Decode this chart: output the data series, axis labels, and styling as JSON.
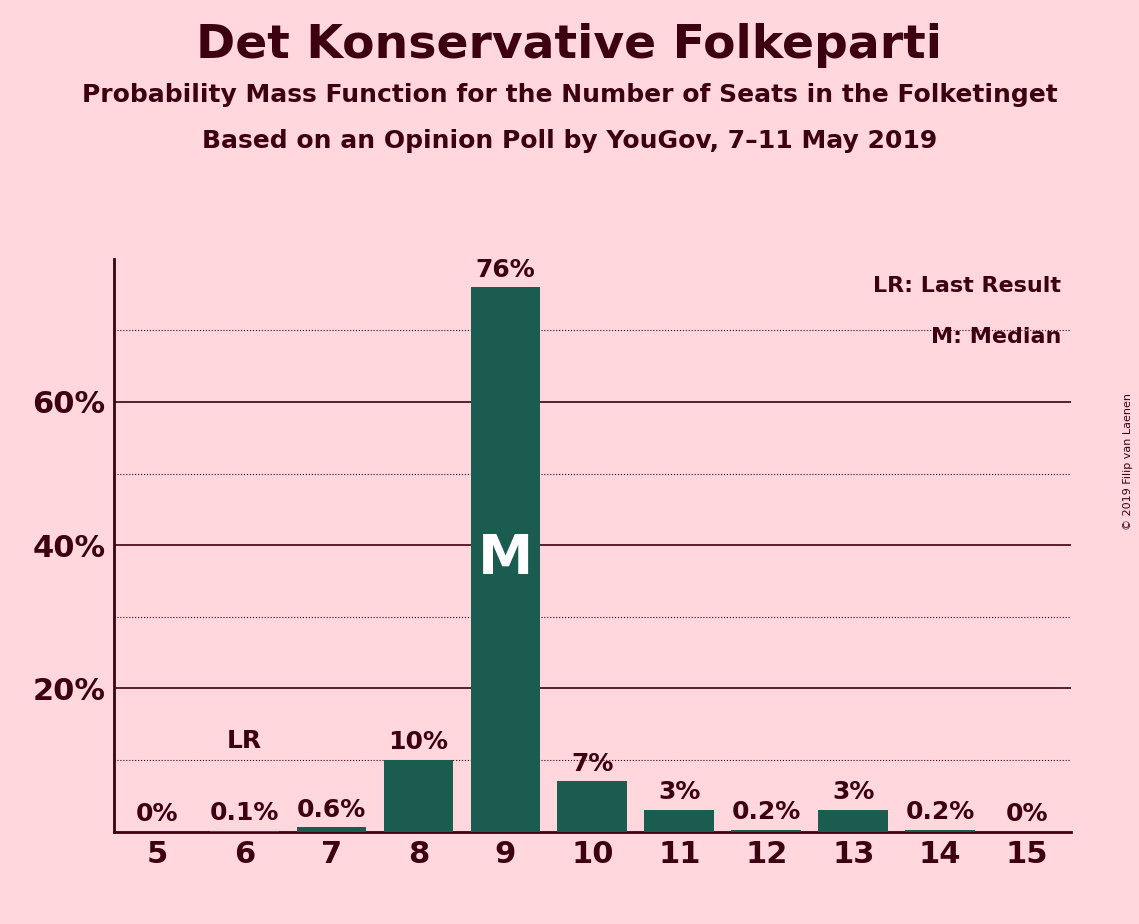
{
  "title": "Det Konservative Folkeparti",
  "subtitle1": "Probability Mass Function for the Number of Seats in the Folketinget",
  "subtitle2": "Based on an Opinion Poll by YouGov, 7–11 May 2019",
  "copyright": "© 2019 Filip van Laenen",
  "seats": [
    5,
    6,
    7,
    8,
    9,
    10,
    11,
    12,
    13,
    14,
    15
  ],
  "probabilities": [
    0.0,
    0.1,
    0.6,
    10.0,
    76.0,
    7.0,
    3.0,
    0.2,
    3.0,
    0.2,
    0.0
  ],
  "bar_color": "#1a5c50",
  "background_color": "#ffd7dc",
  "text_color": "#3d0010",
  "last_result_seat": 6,
  "median_seat": 9,
  "legend_text1": "LR: Last Result",
  "legend_text2": "M: Median",
  "ylim": [
    0,
    80
  ],
  "solid_gridlines": [
    20,
    40,
    60
  ],
  "dotted_gridlines": [
    10,
    30,
    50,
    70
  ],
  "label_fontsize": 18,
  "tick_fontsize": 22,
  "title_fontsize": 34,
  "subtitle_fontsize": 18
}
